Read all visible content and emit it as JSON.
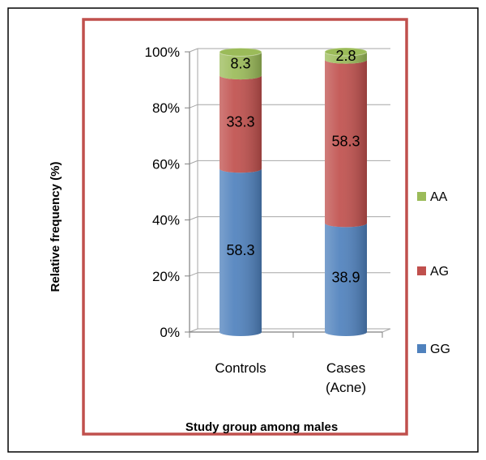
{
  "chart_data": {
    "type": "bar",
    "stacked": true,
    "percent_stacked": true,
    "three_d": true,
    "categories": [
      {
        "lines": [
          "Controls"
        ]
      },
      {
        "lines": [
          "Cases",
          "(Acne)"
        ]
      }
    ],
    "series": [
      {
        "name": "GG",
        "values": [
          58.3,
          38.9
        ],
        "labels": [
          "58.3",
          "38.9"
        ],
        "color": "#4F81BD"
      },
      {
        "name": "AG",
        "values": [
          33.3,
          58.3
        ],
        "labels": [
          "33.3",
          "58.3"
        ],
        "color": "#C0504D"
      },
      {
        "name": "AA",
        "values": [
          8.3,
          2.8
        ],
        "labels": [
          "8.3",
          "2.8"
        ],
        "color": "#9BBB59"
      }
    ],
    "ylabel": "Relative frequency (%)",
    "xlabel": "Study group among males",
    "ylim": [
      0,
      100
    ],
    "yticks": [
      "0%",
      "20%",
      "40%",
      "60%",
      "80%",
      "100%"
    ],
    "grid": true,
    "legend_position": "right",
    "plot_border_color": "#C0504D"
  }
}
